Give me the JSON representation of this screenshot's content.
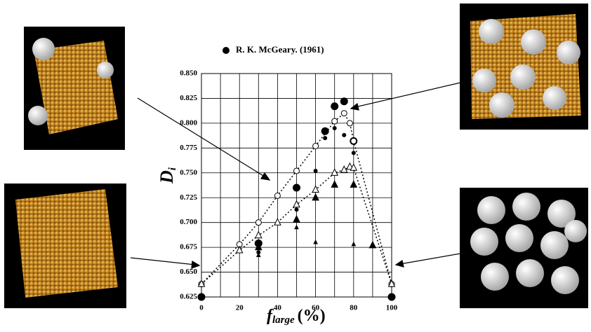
{
  "chart_data": {
    "type": "scatter",
    "legend_corner": "top",
    "ylabel": {
      "text": "D",
      "subscript": "i"
    },
    "xlabel": {
      "text": "f",
      "subscript": "large",
      "suffix": "(%)"
    },
    "xlim": [
      0,
      100
    ],
    "ylim": [
      0.625,
      0.85
    ],
    "xticks": [
      0,
      20,
      40,
      60,
      80,
      100
    ],
    "xminor": [
      10,
      30,
      50,
      70,
      90
    ],
    "yticks": [
      0.625,
      {
        "value": 0.65,
        "label": "0.650"
      },
      0.675,
      {
        "value": 0.7,
        "label": "0.700"
      },
      0.725,
      {
        "value": 0.75,
        "label": "0.750"
      },
      0.775,
      {
        "value": 0.8,
        "label": "0.800"
      },
      0.825,
      {
        "value": 0.85,
        "label": "0.850"
      }
    ],
    "grid": true,
    "series": [
      {
        "name": "R. K. McGeary. (1961)",
        "color": "#000000",
        "marker": "circle-filled",
        "size": 5,
        "line": "none",
        "x": [
          0,
          30,
          50,
          65,
          70,
          75,
          80,
          100
        ],
        "values": [
          0.625,
          0.679,
          0.735,
          0.792,
          0.817,
          0.822,
          0.782,
          0.625
        ]
      },
      {
        "color": "#000000",
        "marker": "circle-filled",
        "size": 2.5,
        "line": "none",
        "x": [
          30,
          50,
          60,
          65,
          70,
          75,
          80
        ],
        "values": [
          0.67,
          0.713,
          0.752,
          0.785,
          0.795,
          0.788,
          0.77
        ]
      },
      {
        "color": "#000000",
        "marker": "circle-open",
        "size": 4,
        "line": "dotted",
        "x": [
          0,
          20,
          30,
          40,
          50,
          60,
          70,
          75,
          78,
          80,
          100
        ],
        "values": [
          0.638,
          0.678,
          0.7,
          0.727,
          0.752,
          0.777,
          0.802,
          0.81,
          0.8,
          0.782,
          0.638
        ]
      },
      {
        "color": "#000000",
        "marker": "triangle-open",
        "size": 4.5,
        "line": "dotted",
        "x": [
          0,
          20,
          30,
          40,
          50,
          60,
          70,
          75,
          78,
          80,
          100
        ],
        "values": [
          0.638,
          0.672,
          0.687,
          0.7,
          0.718,
          0.733,
          0.75,
          0.753,
          0.756,
          0.755,
          0.638
        ]
      },
      {
        "color": "#000000",
        "marker": "triangle-filled",
        "size": 4.5,
        "line": "none",
        "x": [
          30,
          50,
          60,
          70,
          80,
          90
        ],
        "values": [
          0.675,
          0.703,
          0.725,
          0.738,
          0.738,
          0.677
        ]
      },
      {
        "color": "#000000",
        "marker": "triangle-filled",
        "size": 2.5,
        "line": "none",
        "x": [
          30,
          50,
          60,
          80
        ],
        "values": [
          0.667,
          0.695,
          0.68,
          0.678
        ]
      }
    ]
  }
}
